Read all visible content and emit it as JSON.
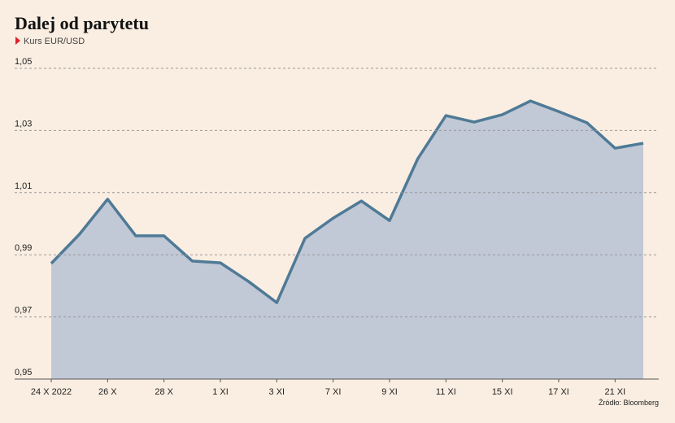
{
  "chart_data": {
    "type": "area",
    "title": "Dalej od parytetu",
    "subtitle": "Kurs EUR/USD",
    "source": "Źródło: Bloomberg",
    "categories": [
      "24 X 2022",
      null,
      "26 X",
      null,
      "28 X",
      null,
      "1 XI",
      null,
      "3 XI",
      null,
      "7 XI",
      null,
      "9 XI",
      null,
      "11 XI",
      null,
      "15 XI",
      null,
      "17 XI",
      null,
      "21 XI",
      null
    ],
    "series": [
      {
        "name": "EUR/USD",
        "color": "#4f7a96",
        "fill": "#c1c8d6",
        "values": [
          0.9872,
          0.9966,
          1.0079,
          0.9961,
          0.9961,
          0.988,
          0.9874,
          0.9814,
          0.9746,
          0.9953,
          1.0018,
          1.0073,
          1.001,
          1.0209,
          1.0348,
          1.0327,
          1.0351,
          1.0395,
          1.0361,
          1.0325,
          1.0243,
          1.0259
        ]
      }
    ],
    "ylim": [
      0.95,
      1.05
    ],
    "yticks": [
      {
        "value": 0.95,
        "label": "0,95"
      },
      {
        "value": 0.97,
        "label": "0,97"
      },
      {
        "value": 0.99,
        "label": "0,99"
      },
      {
        "value": 1.01,
        "label": "1,01"
      },
      {
        "value": 1.03,
        "label": "1,03"
      },
      {
        "value": 1.05,
        "label": "1,05"
      }
    ],
    "grid": true
  }
}
